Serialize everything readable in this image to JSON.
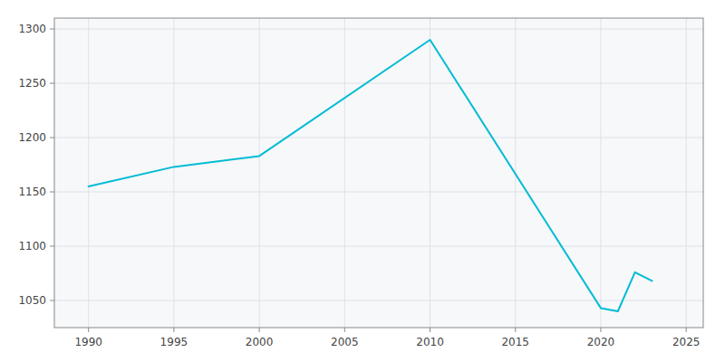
{
  "chart_data": {
    "type": "line",
    "x": [
      1990,
      1995,
      2000,
      2010,
      2020,
      2021,
      2022,
      2023
    ],
    "values": [
      1155,
      1173,
      1183,
      1290,
      1043,
      1040,
      1076,
      1068
    ],
    "color": "#00BCD4",
    "xlim": [
      1988,
      2026
    ],
    "ylim": [
      1025,
      1310
    ],
    "xticks": [
      1990,
      1995,
      2000,
      2005,
      2010,
      2015,
      2020,
      2025
    ],
    "yticks": [
      1050,
      1100,
      1150,
      1200,
      1250,
      1300
    ],
    "grid": true
  }
}
